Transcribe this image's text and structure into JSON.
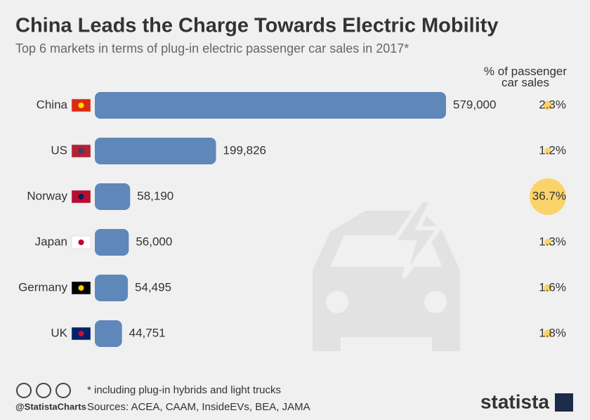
{
  "chart_data": {
    "type": "bar",
    "orientation": "horizontal",
    "title": "China Leads the Charge Towards Electric Mobility",
    "subtitle": "Top 6 markets in terms of plug-in electric passenger car sales in 2017*",
    "categories": [
      "China",
      "US",
      "Norway",
      "Japan",
      "Germany",
      "UK"
    ],
    "values": [
      579000,
      199826,
      58190,
      56000,
      54495,
      44751
    ],
    "value_labels": [
      "579,000",
      "199,826",
      "58,190",
      "56,000",
      "54,495",
      "44,751"
    ],
    "color": "#5f87ba",
    "share": {
      "title": "% of passenger car sales",
      "type": "bubble",
      "color": "#fbd36a",
      "values": [
        2.3,
        1.2,
        36.7,
        1.3,
        1.6,
        1.8
      ],
      "value_labels": [
        "2.3%",
        "1.2%",
        "36.7%",
        "1.3%",
        "1.6%",
        "1.8%"
      ]
    },
    "footnote": "* including plug-in hybrids and light trucks",
    "source": "Sources: ACEA, CAAM, InsideEVs, BEA, JAMA",
    "handle": "@StatistaCharts",
    "brand": "statista"
  }
}
